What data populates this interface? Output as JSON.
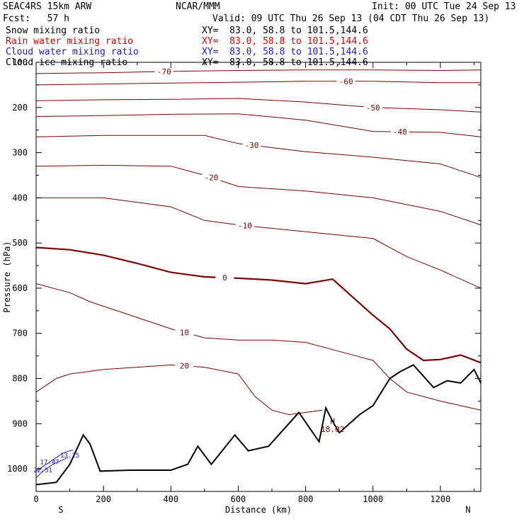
{
  "header": {
    "model": "SEAC4RS 15km ARW",
    "center": "NCAR/MMM",
    "init": "Init: 00 UTC Tue 24 Sep 13",
    "fcst": "Fcst:   57 h",
    "valid": "Valid: 09 UTC Thu 26 Sep 13 (04 CDT Thu 26 Sep 13)"
  },
  "fields": [
    {
      "name": "Snow mixing ratio",
      "xy": "XY=  83.0, 58.8 to 101.5,144.6",
      "color": "#000000"
    },
    {
      "name": "Rain water mixing ratio",
      "xy": "XY=  83.0, 58.8 to 101.5,144.6",
      "color": "#e00000"
    },
    {
      "name": "Cloud water mixing ratio",
      "xy": "XY=  83.0, 58.8 to 101.5,144.6",
      "color": "#1a1ad6"
    },
    {
      "name": "Cloud ice mixing ratio",
      "xy": "XY=  83.0, 58.8 to 101.5,144.6",
      "color": "#000000"
    }
  ],
  "colors": {
    "isotherm": "#800000",
    "terrain": "#000000",
    "cloud": "#1a1ad6",
    "text": "#000000"
  },
  "chart_data": {
    "type": "line",
    "xlabel": "Distance (km)",
    "ylabel": "Pressure (hPa)",
    "xlim": [
      0,
      1320
    ],
    "ylim": [
      1050,
      100
    ],
    "x_ticks": [
      0,
      200,
      400,
      600,
      800,
      1000,
      1200
    ],
    "y_ticks": [
      100,
      200,
      300,
      400,
      500,
      600,
      700,
      800,
      900,
      1000
    ],
    "left_end_label": "S",
    "right_end_label": "N",
    "grid": false,
    "terrain": {
      "x": [
        0,
        60,
        100,
        140,
        160,
        190,
        280,
        400,
        450,
        480,
        520,
        590,
        630,
        690,
        780,
        840,
        860,
        880,
        900,
        960,
        1000,
        1050,
        1080,
        1120,
        1180,
        1220,
        1260,
        1300,
        1320
      ],
      "p": [
        1035,
        1030,
        990,
        925,
        945,
        1005,
        1003,
        1003,
        990,
        950,
        990,
        925,
        960,
        950,
        875,
        940,
        865,
        895,
        920,
        880,
        860,
        800,
        785,
        770,
        820,
        805,
        810,
        780,
        810
      ]
    },
    "isotherms": [
      {
        "value": -70,
        "x": [
          0,
          200,
          400,
          600,
          800,
          1000,
          1200,
          1320
        ],
        "p": [
          125,
          123,
          120,
          118,
          117,
          117,
          118,
          117
        ],
        "label_x": 380
      },
      {
        "value": -60,
        "x": [
          0,
          200,
          400,
          600,
          800,
          1000,
          1200,
          1320
        ],
        "p": [
          150,
          148,
          146,
          144,
          142,
          142,
          145,
          145
        ],
        "label_x": 920
      },
      {
        "value": -50,
        "x": [
          0,
          200,
          400,
          600,
          800,
          1000,
          1200,
          1320
        ],
        "p": [
          185,
          183,
          182,
          180,
          188,
          200,
          205,
          210
        ],
        "label_x": 1000
      },
      {
        "value": -40,
        "x": [
          0,
          200,
          400,
          600,
          800,
          1000,
          1200,
          1320
        ],
        "p": [
          220,
          218,
          215,
          214,
          228,
          253,
          255,
          265
        ],
        "label_x": 1080
      },
      {
        "value": -30,
        "x": [
          0,
          200,
          400,
          500,
          600,
          800,
          1000,
          1200,
          1320
        ],
        "p": [
          265,
          262,
          262,
          262,
          280,
          298,
          310,
          325,
          355
        ],
        "label_x": 640
      },
      {
        "value": -20,
        "x": [
          0,
          200,
          400,
          500,
          600,
          800,
          1000,
          1200,
          1320
        ],
        "p": [
          330,
          328,
          330,
          350,
          375,
          385,
          400,
          430,
          460
        ],
        "label_x": 520
      },
      {
        "value": -10,
        "x": [
          0,
          200,
          400,
          500,
          600,
          800,
          1000,
          1100,
          1200,
          1320
        ],
        "p": [
          400,
          400,
          420,
          450,
          460,
          475,
          490,
          530,
          560,
          600
        ],
        "label_x": 620
      },
      {
        "value": 0,
        "x": [
          0,
          100,
          200,
          300,
          400,
          500,
          600,
          700,
          800,
          880,
          940,
          1000,
          1050,
          1100,
          1150,
          1200,
          1260,
          1320
        ],
        "p": [
          510,
          515,
          527,
          545,
          565,
          575,
          578,
          582,
          590,
          580,
          620,
          660,
          690,
          735,
          760,
          758,
          748,
          765
        ],
        "label_x": 560
      },
      {
        "value": 10,
        "x": [
          0,
          100,
          160,
          200,
          300,
          400,
          500,
          600,
          700,
          800,
          900,
          1000,
          1050,
          1100,
          1200,
          1320
        ],
        "p": [
          590,
          610,
          630,
          640,
          665,
          690,
          710,
          715,
          715,
          720,
          740,
          760,
          800,
          830,
          850,
          870
        ],
        "label_x": 440
      },
      {
        "value": 20,
        "x": [
          0,
          60,
          100,
          200,
          300,
          400,
          500,
          600,
          650,
          700,
          750,
          800,
          850
        ],
        "p": [
          830,
          800,
          790,
          780,
          775,
          770,
          775,
          790,
          840,
          870,
          880,
          875,
          870
        ],
        "label_x": 440
      }
    ],
    "annotations": [
      {
        "text": "H",
        "x": 880,
        "p": 900
      },
      {
        "text": "18.02",
        "x": 880,
        "p": 918
      },
      {
        "text": "13.25",
        "x": 100,
        "p": 975
      },
      {
        "text": "17.47",
        "x": 40,
        "p": 990
      },
      {
        "text": "22.51",
        "x": 20,
        "p": 1008
      }
    ],
    "cloud_water": [
      {
        "x": [
          0,
          30,
          60,
          80,
          100,
          110
        ],
        "p": [
          1005,
          990,
          975,
          965,
          960,
          958
        ]
      },
      {
        "x": [
          0,
          20,
          50,
          80,
          95
        ],
        "p": [
          1020,
          1005,
          990,
          980,
          975
        ]
      }
    ]
  }
}
